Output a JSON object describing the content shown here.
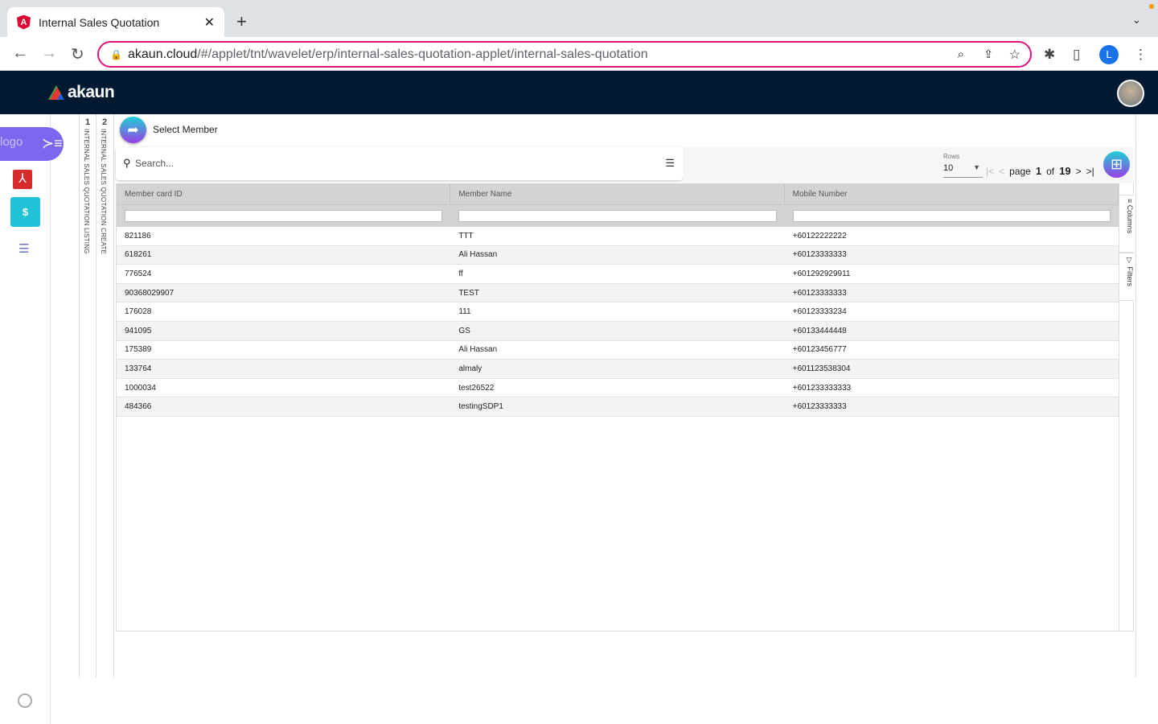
{
  "browser": {
    "tab_title": "Internal Sales Quotation",
    "url_host": "akaun.cloud",
    "url_path": "/#/applet/tnt/wavelet/erp/internal-sales-quotation-applet/internal-sales-quotation",
    "profile_initial": "L"
  },
  "app": {
    "brand": "akaun",
    "logo_alt": "logo"
  },
  "vertical_tabs": [
    {
      "num": "1",
      "label": "INTERNAL SALES QUOTATION LISTING"
    },
    {
      "num": "2",
      "label": "INTERNAL SALES QUOTATION CREATE"
    }
  ],
  "page": {
    "title": "Select Member",
    "search_placeholder": "Search..."
  },
  "pager": {
    "rows_label": "Rows",
    "rows_value": "10",
    "page_word": "page",
    "page": "1",
    "of_word": "of",
    "total": "19"
  },
  "side_panel": {
    "columns": "Columns",
    "filters": "Filters"
  },
  "table": {
    "columns": [
      "Member card ID",
      "Member Name",
      "Mobile Number"
    ],
    "rows": [
      [
        "821186",
        "TTT",
        "+60122222222"
      ],
      [
        "618261",
        "Ali Hassan",
        "+60123333333"
      ],
      [
        "776524",
        "ff",
        "+601292929911"
      ],
      [
        "90368029907",
        "TEST",
        "+60123333333"
      ],
      [
        "176028",
        "111",
        "+60123333234"
      ],
      [
        "941095",
        "GS",
        "+60133444448"
      ],
      [
        "175389",
        "Ali Hassan",
        "+60123456777"
      ],
      [
        "133764",
        "almaly",
        "+601123538304"
      ],
      [
        "1000034",
        "test26522",
        "+601233333333"
      ],
      [
        "484366",
        "testingSDP1",
        "+60123333333"
      ]
    ]
  },
  "colors": {
    "header_bg": "#021a31",
    "accent": "#7b68ee",
    "url_border": "#e0127c"
  }
}
